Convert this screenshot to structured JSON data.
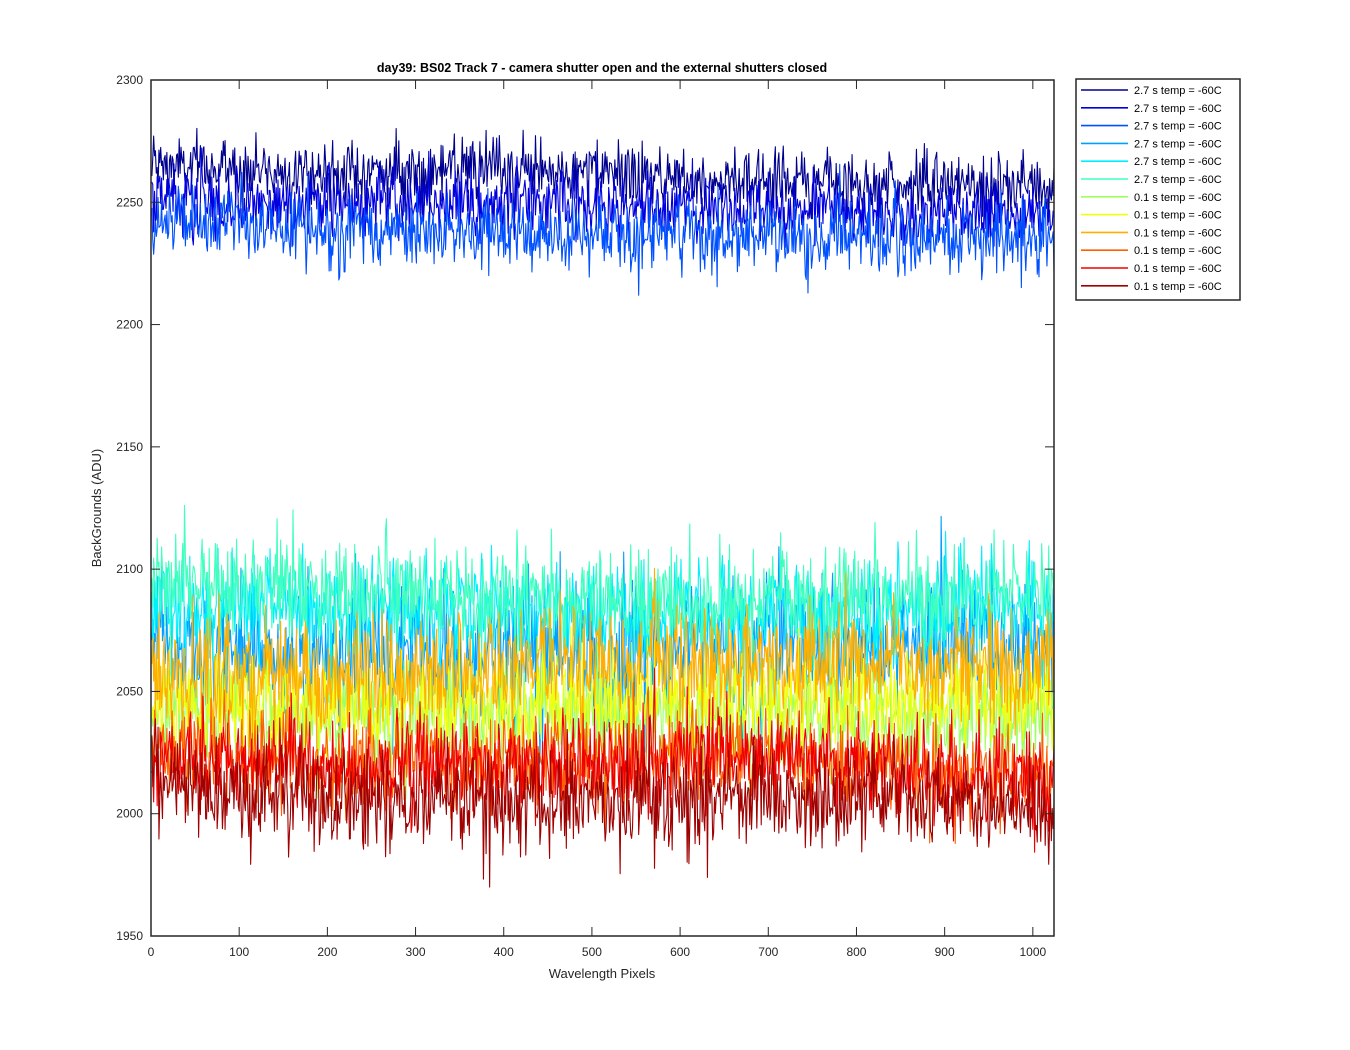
{
  "chart_data": {
    "type": "line",
    "title": "day39: BS02  Track 7 - camera shutter open and the external shutters closed",
    "xlabel": "Wavelength Pixels",
    "ylabel": "BackGrounds (ADU)",
    "xlim": [
      0,
      1024
    ],
    "ylim": [
      1950,
      2300
    ],
    "xticks": [
      0,
      100,
      200,
      300,
      400,
      500,
      600,
      700,
      800,
      900,
      1000
    ],
    "yticks": [
      1950,
      2000,
      2050,
      2100,
      2150,
      2200,
      2250,
      2300
    ],
    "grid": false,
    "legend_position": "outside-top-right",
    "n_points": 1024,
    "series": [
      {
        "name": "2.7 s temp = -60C",
        "color": "#00008f",
        "mean": 2262,
        "noise": 6.5,
        "drift": [
          2265,
          2262,
          2263,
          2260,
          2258,
          2256
        ]
      },
      {
        "name": "2.7 s temp = -60C",
        "color": "#0000df",
        "mean": 2250,
        "noise": 7,
        "drift": [
          2251,
          2249,
          2250,
          2247,
          2246,
          2245
        ]
      },
      {
        "name": "2.7 s temp = -60C",
        "color": "#0050ff",
        "mean": 2238,
        "noise": 7.5,
        "drift": [
          2242,
          2238,
          2237,
          2236,
          2236,
          2234
        ]
      },
      {
        "name": "2.7 s temp = -60C",
        "color": "#00a0ff",
        "mean": 2070,
        "noise": 14,
        "drift": [
          2068,
          2066,
          2064,
          2067,
          2070,
          2073
        ]
      },
      {
        "name": "2.7 s temp = -60C",
        "color": "#00efff",
        "mean": 2085,
        "noise": 11,
        "drift": [
          2086,
          2086,
          2083,
          2082,
          2084,
          2086
        ]
      },
      {
        "name": "2.7 s temp = -60C",
        "color": "#40ffbf",
        "mean": 2090,
        "noise": 11,
        "drift": [
          2093,
          2092,
          2089,
          2087,
          2088,
          2090
        ]
      },
      {
        "name": "0.1 s temp = -60C",
        "color": "#9fff60",
        "mean": 2040,
        "noise": 11,
        "drift": [
          2042,
          2041,
          2040,
          2041,
          2040,
          2039
        ]
      },
      {
        "name": "0.1 s temp = -60C",
        "color": "#efff10",
        "mean": 2045,
        "noise": 11,
        "drift": [
          2046,
          2044,
          2045,
          2047,
          2046,
          2046
        ]
      },
      {
        "name": "0.1 s temp = -60C",
        "color": "#ffaf00",
        "mean": 2058,
        "noise": 12,
        "drift": [
          2058,
          2056,
          2060,
          2062,
          2060,
          2062
        ]
      },
      {
        "name": "0.1 s temp = -60C",
        "color": "#ff5f00",
        "mean": 2022,
        "noise": 10,
        "drift": [
          2025,
          2020,
          2021,
          2024,
          2020,
          2014
        ]
      },
      {
        "name": "0.1 s temp = -60C",
        "color": "#ef0000",
        "mean": 2020,
        "noise": 10,
        "drift": [
          2023,
          2018,
          2019,
          2025,
          2020,
          2010
        ]
      },
      {
        "name": "0.1 s temp = -60C",
        "color": "#9f0000",
        "mean": 2008,
        "noise": 10,
        "drift": [
          2012,
          2006,
          2005,
          2007,
          2006,
          2003
        ]
      }
    ]
  }
}
